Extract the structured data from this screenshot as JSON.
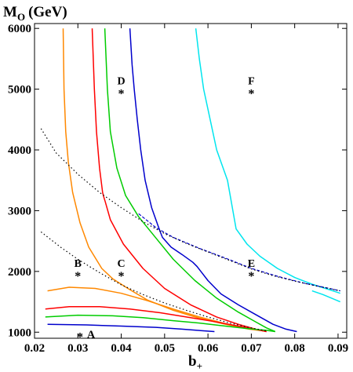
{
  "chart_data": {
    "type": "line",
    "title": "",
    "ylabel": {
      "main": "M",
      "sub": "O",
      "unit": "(GeV)"
    },
    "xlabel": {
      "main": "b",
      "sub": "+"
    },
    "xlim": [
      0.02,
      0.092
    ],
    "ylim": [
      900,
      6080
    ],
    "xticks": [
      0.02,
      0.03,
      0.04,
      0.05,
      0.06,
      0.07,
      0.08,
      0.09
    ],
    "xtick_labels": [
      "0.02",
      "0.03",
      "0.04",
      "0.05",
      "0.06",
      "0.07",
      "0.08",
      "0.09"
    ],
    "yticks": [
      1000,
      2000,
      3000,
      4000,
      5000,
      6000
    ],
    "ytick_labels": [
      "1000",
      "2000",
      "3000",
      "4000",
      "5000",
      "6000"
    ],
    "grid": false,
    "legend": "none",
    "series": [
      {
        "color": "#ff8800",
        "style": "solid",
        "points": [
          [
            0.0266,
            6000
          ],
          [
            0.0268,
            5000
          ],
          [
            0.0272,
            4300
          ],
          [
            0.0278,
            3800
          ],
          [
            0.0288,
            3300
          ],
          [
            0.0305,
            2800
          ],
          [
            0.0325,
            2400
          ],
          [
            0.0355,
            2050
          ],
          [
            0.038,
            1880
          ],
          [
            0.042,
            1700
          ],
          [
            0.046,
            1530
          ],
          [
            0.052,
            1360
          ],
          [
            0.058,
            1230
          ],
          [
            0.064,
            1130
          ],
          [
            0.0695,
            1050
          ],
          [
            0.073,
            1020
          ]
        ]
      },
      {
        "color": "#ff8800",
        "style": "solid",
        "points": [
          [
            0.023,
            1680
          ],
          [
            0.028,
            1740
          ],
          [
            0.034,
            1720
          ],
          [
            0.04,
            1640
          ],
          [
            0.046,
            1520
          ],
          [
            0.052,
            1380
          ],
          [
            0.058,
            1250
          ],
          [
            0.064,
            1140
          ],
          [
            0.07,
            1050
          ],
          [
            0.073,
            1020
          ]
        ]
      },
      {
        "color": "#ff0000",
        "style": "solid",
        "points": [
          [
            0.0333,
            6000
          ],
          [
            0.0338,
            5000
          ],
          [
            0.0343,
            4300
          ],
          [
            0.035,
            3700
          ],
          [
            0.0357,
            3300
          ],
          [
            0.036,
            3220
          ],
          [
            0.0363,
            3150
          ],
          [
            0.0375,
            2850
          ],
          [
            0.0405,
            2450
          ],
          [
            0.045,
            2050
          ],
          [
            0.05,
            1720
          ],
          [
            0.056,
            1450
          ],
          [
            0.062,
            1250
          ],
          [
            0.067,
            1130
          ],
          [
            0.0715,
            1040
          ],
          [
            0.0735,
            1010
          ]
        ]
      },
      {
        "color": "#ff0000",
        "style": "solid",
        "points": [
          [
            0.0225,
            1380
          ],
          [
            0.028,
            1420
          ],
          [
            0.035,
            1420
          ],
          [
            0.042,
            1380
          ],
          [
            0.049,
            1320
          ],
          [
            0.055,
            1250
          ],
          [
            0.061,
            1180
          ],
          [
            0.067,
            1100
          ],
          [
            0.0715,
            1040
          ],
          [
            0.0735,
            1010
          ]
        ]
      },
      {
        "color": "#00cc00",
        "style": "solid",
        "points": [
          [
            0.0362,
            6000
          ],
          [
            0.0368,
            5000
          ],
          [
            0.0375,
            4300
          ],
          [
            0.039,
            3700
          ],
          [
            0.041,
            3250
          ],
          [
            0.044,
            2900
          ],
          [
            0.048,
            2550
          ],
          [
            0.052,
            2200
          ],
          [
            0.057,
            1850
          ],
          [
            0.062,
            1560
          ],
          [
            0.067,
            1330
          ],
          [
            0.071,
            1170
          ],
          [
            0.0735,
            1070
          ],
          [
            0.0755,
            1010
          ]
        ]
      },
      {
        "color": "#00cc00",
        "style": "solid",
        "points": [
          [
            0.0225,
            1250
          ],
          [
            0.03,
            1280
          ],
          [
            0.038,
            1270
          ],
          [
            0.045,
            1240
          ],
          [
            0.052,
            1190
          ],
          [
            0.058,
            1150
          ],
          [
            0.064,
            1100
          ],
          [
            0.069,
            1060
          ],
          [
            0.0735,
            1030
          ],
          [
            0.0755,
            1010
          ]
        ]
      },
      {
        "color": "#0000cc",
        "style": "solid",
        "points": [
          [
            0.042,
            6000
          ],
          [
            0.0425,
            5400
          ],
          [
            0.043,
            5000
          ],
          [
            0.0437,
            4500
          ],
          [
            0.0445,
            4000
          ],
          [
            0.0455,
            3500
          ],
          [
            0.047,
            3050
          ],
          [
            0.0485,
            2750
          ],
          [
            0.049,
            2650
          ],
          [
            0.0495,
            2560
          ],
          [
            0.0515,
            2400
          ],
          [
            0.054,
            2280
          ],
          [
            0.0565,
            2150
          ],
          [
            0.0575,
            2080
          ],
          [
            0.06,
            1850
          ],
          [
            0.063,
            1630
          ],
          [
            0.067,
            1450
          ],
          [
            0.071,
            1290
          ],
          [
            0.075,
            1130
          ],
          [
            0.078,
            1050
          ],
          [
            0.0805,
            1010
          ]
        ]
      },
      {
        "color": "#0000cc",
        "style": "solid",
        "points": [
          [
            0.023,
            1130
          ],
          [
            0.032,
            1120
          ],
          [
            0.04,
            1100
          ],
          [
            0.048,
            1080
          ],
          [
            0.054,
            1050
          ],
          [
            0.0575,
            1030
          ],
          [
            0.0615,
            1010
          ]
        ]
      },
      {
        "color": "#00e5ee",
        "style": "solid",
        "points": [
          [
            0.0572,
            6000
          ],
          [
            0.058,
            5500
          ],
          [
            0.059,
            5000
          ],
          [
            0.0605,
            4500
          ],
          [
            0.062,
            4000
          ],
          [
            0.0645,
            3500
          ],
          [
            0.0655,
            3100
          ],
          [
            0.0665,
            2700
          ],
          [
            0.069,
            2450
          ],
          [
            0.072,
            2250
          ],
          [
            0.076,
            2050
          ],
          [
            0.08,
            1900
          ],
          [
            0.084,
            1790
          ],
          [
            0.088,
            1700
          ],
          [
            0.0905,
            1640
          ]
        ]
      },
      {
        "color": "#00e5ee",
        "style": "solid",
        "points": [
          [
            0.084,
            1680
          ],
          [
            0.0865,
            1620
          ],
          [
            0.0885,
            1560
          ],
          [
            0.0905,
            1500
          ]
        ]
      },
      {
        "color": "#0000cc",
        "style": "dashed",
        "points": [
          [
            0.044,
            2950
          ],
          [
            0.048,
            2720
          ],
          [
            0.052,
            2560
          ],
          [
            0.058,
            2380
          ],
          [
            0.064,
            2220
          ],
          [
            0.07,
            2050
          ],
          [
            0.076,
            1920
          ],
          [
            0.082,
            1810
          ],
          [
            0.088,
            1720
          ],
          [
            0.0905,
            1680
          ]
        ]
      },
      {
        "color": "#000000",
        "style": "dotted",
        "points": [
          [
            0.0215,
            4350
          ],
          [
            0.025,
            3950
          ],
          [
            0.03,
            3600
          ],
          [
            0.035,
            3300
          ],
          [
            0.04,
            3050
          ],
          [
            0.045,
            2820
          ],
          [
            0.05,
            2620
          ],
          [
            0.055,
            2460
          ],
          [
            0.06,
            2320
          ],
          [
            0.065,
            2180
          ],
          [
            0.07,
            2040
          ],
          [
            0.075,
            1930
          ],
          [
            0.08,
            1840
          ],
          [
            0.085,
            1760
          ],
          [
            0.0905,
            1680
          ]
        ]
      },
      {
        "color": "#000000",
        "style": "dotted",
        "points": [
          [
            0.0215,
            2650
          ],
          [
            0.026,
            2400
          ],
          [
            0.03,
            2200
          ],
          [
            0.035,
            1980
          ],
          [
            0.04,
            1780
          ],
          [
            0.045,
            1620
          ],
          [
            0.05,
            1480
          ],
          [
            0.055,
            1360
          ],
          [
            0.06,
            1250
          ],
          [
            0.065,
            1150
          ],
          [
            0.07,
            1070
          ],
          [
            0.0735,
            1020
          ]
        ]
      }
    ],
    "annotations": [
      {
        "label": "A",
        "x": 0.0305,
        "y": 1000
      },
      {
        "label": "B",
        "x": 0.03,
        "y": 2000
      },
      {
        "label": "C",
        "x": 0.04,
        "y": 2000
      },
      {
        "label": "D",
        "x": 0.04,
        "y": 5000
      },
      {
        "label": "E",
        "x": 0.07,
        "y": 2000
      },
      {
        "label": "F",
        "x": 0.07,
        "y": 5000
      }
    ],
    "marker_symbol": "*"
  }
}
